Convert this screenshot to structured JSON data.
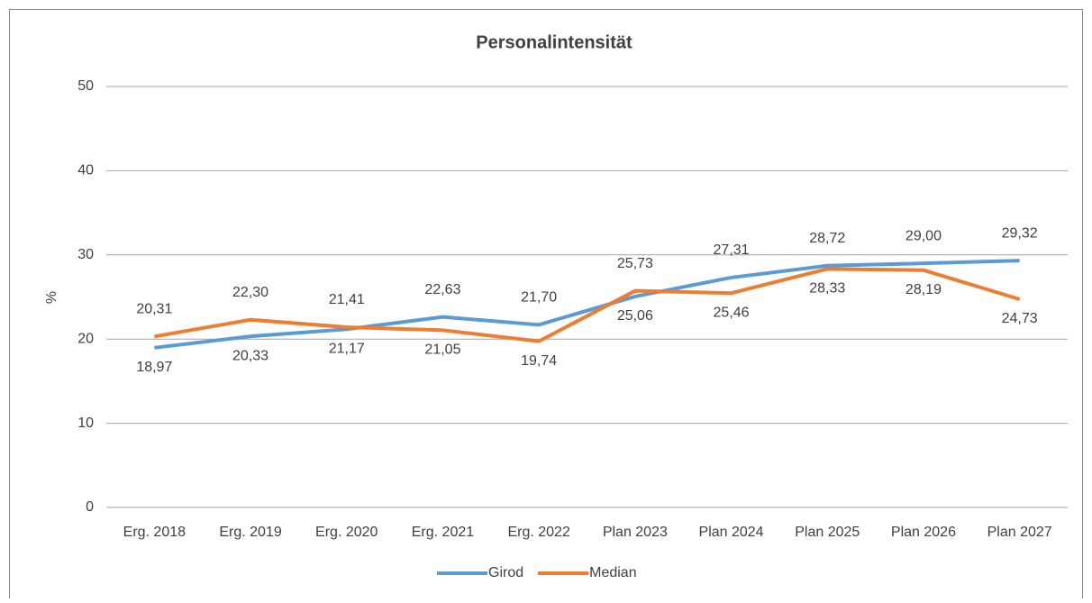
{
  "chart_data": {
    "type": "line",
    "title": "Personalintensität",
    "y_label": "%",
    "categories": [
      "Erg. 2018",
      "Erg. 2019",
      "Erg. 2020",
      "Erg. 2021",
      "Erg. 2022",
      "Plan 2023",
      "Plan 2024",
      "Plan 2025",
      "Plan 2026",
      "Plan 2027"
    ],
    "series": [
      {
        "name": "Girod",
        "color": "#5b9bd5",
        "values": [
          18.97,
          20.33,
          21.17,
          22.63,
          21.7,
          25.06,
          27.31,
          28.72,
          29.0,
          29.32
        ],
        "value_labels": [
          "18,97",
          "20,33",
          "21,17",
          "22,63",
          "21,70",
          "25,06",
          "27,31",
          "28,72",
          "29,00",
          "29,32"
        ]
      },
      {
        "name": "Median",
        "color": "#ed7d31",
        "values": [
          20.31,
          22.3,
          21.41,
          21.05,
          19.74,
          25.73,
          25.46,
          28.33,
          28.19,
          24.73
        ],
        "value_labels": [
          "20,31",
          "22,30",
          "21,41",
          "21,05",
          "19,74",
          "25,73",
          "25,46",
          "28,33",
          "28,19",
          "24,73"
        ]
      }
    ],
    "ylim": [
      0,
      50
    ],
    "yticks": [
      0,
      10,
      20,
      30,
      40,
      50
    ],
    "grid": true,
    "legend": "bottom"
  }
}
